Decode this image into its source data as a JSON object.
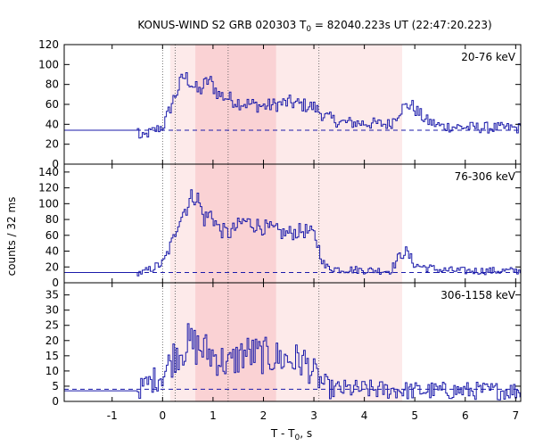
{
  "chart_data": {
    "type": "line",
    "title_main": "KONUS-WIND S2 GRB 020303 T",
    "title_sub": "0",
    "title_rest": " = 82040.223s UT (22:47:20.223)",
    "ylabel": "counts / 32 ms",
    "xlabel_main": "T - T",
    "xlabel_sub": "0",
    "xlabel_rest": ", s",
    "xlim": [
      -1.95,
      7.1
    ],
    "xticks": [
      -1,
      0,
      1,
      2,
      3,
      4,
      5,
      6,
      7
    ],
    "dotted_lines": [
      0.0,
      0.25,
      1.3,
      3.1
    ],
    "shaded_regions": [
      {
        "start": 0.15,
        "end": 4.75,
        "level": "light"
      },
      {
        "start": 0.65,
        "end": 2.25,
        "level": "dark"
      }
    ],
    "colors": {
      "series": "#1a1aaa",
      "light_band": "#fdeaea",
      "dark_band": "#fad2d4"
    },
    "panels": [
      {
        "label": "20-76 keV",
        "ylim": [
          0,
          120
        ],
        "yticks": [
          0,
          20,
          40,
          60,
          80,
          100,
          120
        ],
        "background": 34,
        "envelope": [
          [
            -1.95,
            34
          ],
          [
            -0.5,
            34
          ],
          [
            -0.45,
            25
          ],
          [
            -0.3,
            31
          ],
          [
            0,
            38
          ],
          [
            0.2,
            65
          ],
          [
            0.4,
            88
          ],
          [
            0.5,
            85
          ],
          [
            0.7,
            72
          ],
          [
            0.9,
            85
          ],
          [
            1.1,
            70
          ],
          [
            1.5,
            62
          ],
          [
            2.0,
            58
          ],
          [
            2.5,
            62
          ],
          [
            3.0,
            57
          ],
          [
            3.2,
            48
          ],
          [
            3.5,
            42
          ],
          [
            4.0,
            41
          ],
          [
            4.5,
            40
          ],
          [
            4.7,
            55
          ],
          [
            4.9,
            60
          ],
          [
            5.2,
            44
          ],
          [
            5.5,
            38
          ],
          [
            6.0,
            37
          ],
          [
            7.1,
            36
          ]
        ],
        "noise": 5.5
      },
      {
        "label": "76-306 keV",
        "ylim": [
          0,
          150
        ],
        "yticks": [
          0,
          20,
          40,
          60,
          80,
          100,
          120,
          140
        ],
        "background": 13,
        "envelope": [
          [
            -1.95,
            13
          ],
          [
            -0.4,
            13
          ],
          [
            0,
            25
          ],
          [
            0.2,
            55
          ],
          [
            0.3,
            80
          ],
          [
            0.45,
            95
          ],
          [
            0.6,
            112
          ],
          [
            0.7,
            105
          ],
          [
            0.8,
            80
          ],
          [
            0.95,
            88
          ],
          [
            1.1,
            68
          ],
          [
            1.3,
            62
          ],
          [
            1.6,
            78
          ],
          [
            2.0,
            70
          ],
          [
            2.4,
            62
          ],
          [
            2.8,
            66
          ],
          [
            3.0,
            60
          ],
          [
            3.1,
            40
          ],
          [
            3.2,
            20
          ],
          [
            3.5,
            17
          ],
          [
            4.0,
            16
          ],
          [
            4.5,
            15
          ],
          [
            4.7,
            35
          ],
          [
            4.8,
            40
          ],
          [
            5.0,
            22
          ],
          [
            5.5,
            16
          ],
          [
            6.0,
            15
          ],
          [
            7.1,
            15
          ]
        ],
        "noise": 4.5
      },
      {
        "label": "306-1158 keV",
        "ylim": [
          0,
          39
        ],
        "yticks": [
          0,
          5,
          10,
          15,
          20,
          25,
          30,
          35
        ],
        "background": 4,
        "envelope": [
          [
            -1.95,
            3.5
          ],
          [
            -0.5,
            3.5
          ],
          [
            -0.4,
            5
          ],
          [
            0,
            9
          ],
          [
            0.25,
            16
          ],
          [
            0.5,
            19
          ],
          [
            0.8,
            17
          ],
          [
            1.0,
            15
          ],
          [
            1.3,
            12
          ],
          [
            1.6,
            16
          ],
          [
            2.0,
            15
          ],
          [
            2.4,
            14
          ],
          [
            2.8,
            13
          ],
          [
            3.1,
            7
          ],
          [
            3.3,
            4
          ],
          [
            4.0,
            4
          ],
          [
            5.0,
            3.5
          ],
          [
            7.1,
            3.5
          ]
        ],
        "noise": 3.2
      }
    ]
  }
}
